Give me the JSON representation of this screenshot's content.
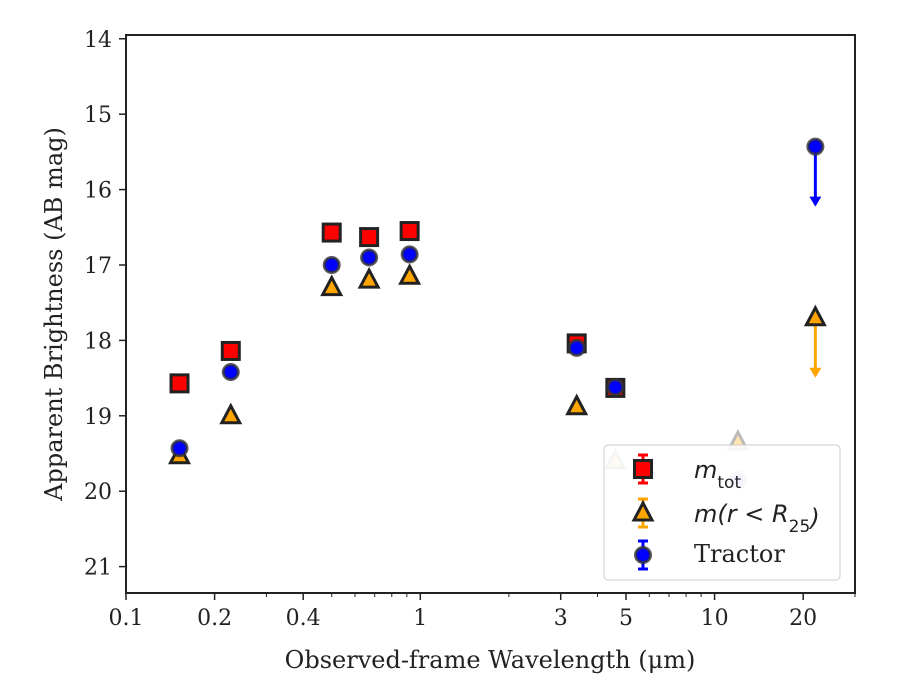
{
  "chart_data": {
    "type": "scatter",
    "xlabel": "Observed-frame Wavelength (μm)",
    "ylabel": "Apparent Brightness (AB mag)",
    "xscale": "log",
    "xlim": [
      0.1,
      30
    ],
    "ylim": [
      21.35,
      13.95
    ],
    "y_inverted": true,
    "xticks": [
      0.1,
      0.2,
      0.4,
      1,
      3,
      5,
      10,
      20
    ],
    "xtick_labels": [
      "0.1",
      "0.2",
      "0.4",
      "1",
      "3",
      "5",
      "10",
      "20"
    ],
    "yticks": [
      14,
      15,
      16,
      17,
      18,
      19,
      20,
      21
    ],
    "ytick_labels": [
      "14",
      "15",
      "16",
      "17",
      "18",
      "19",
      "20",
      "21"
    ],
    "legend_position": "lower-right",
    "series": [
      {
        "name": "m_tot",
        "legend_main": "m",
        "legend_sub": "tot",
        "marker": "square",
        "color": "#ff0000",
        "points": [
          {
            "x": 0.152,
            "y": 18.57
          },
          {
            "x": 0.227,
            "y": 18.14
          },
          {
            "x": 0.5,
            "y": 16.57
          },
          {
            "x": 0.67,
            "y": 16.63
          },
          {
            "x": 0.92,
            "y": 16.55
          },
          {
            "x": 3.4,
            "y": 18.04
          },
          {
            "x": 4.6,
            "y": 18.63
          }
        ]
      },
      {
        "name": "m(r < R25)",
        "legend_main": "m",
        "legend_paren_open": "(r < R",
        "legend_sub": "25",
        "legend_paren_close": ")",
        "marker": "triangle",
        "color": "#ffa500",
        "points": [
          {
            "x": 0.152,
            "y": 19.53
          },
          {
            "x": 0.227,
            "y": 19.0
          },
          {
            "x": 0.5,
            "y": 17.3
          },
          {
            "x": 0.67,
            "y": 17.2
          },
          {
            "x": 0.92,
            "y": 17.15
          },
          {
            "x": 3.4,
            "y": 18.88
          },
          {
            "x": 4.6,
            "y": 19.6,
            "faded": true
          },
          {
            "x": 12.0,
            "y": 19.35,
            "faded": true
          },
          {
            "x": 22.0,
            "y": 17.7,
            "upper_limit": true
          }
        ]
      },
      {
        "name": "Tractor",
        "marker": "circle",
        "color": "#0000ff",
        "points": [
          {
            "x": 0.152,
            "y": 19.43
          },
          {
            "x": 0.227,
            "y": 18.42
          },
          {
            "x": 0.5,
            "y": 17.0
          },
          {
            "x": 0.67,
            "y": 16.9
          },
          {
            "x": 0.92,
            "y": 16.86
          },
          {
            "x": 3.4,
            "y": 18.1
          },
          {
            "x": 4.6,
            "y": 18.62
          },
          {
            "x": 12.0,
            "y": 19.85,
            "faded": true
          },
          {
            "x": 22.0,
            "y": 15.43,
            "upper_limit": true
          }
        ]
      }
    ]
  }
}
